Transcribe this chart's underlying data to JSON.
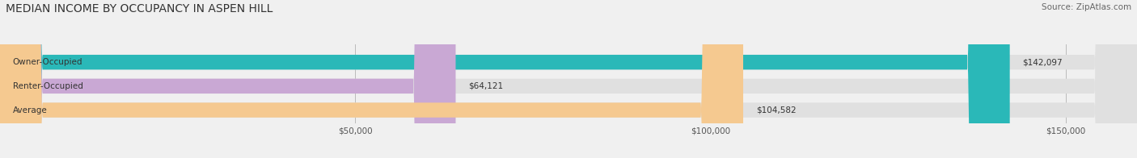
{
  "title": "MEDIAN INCOME BY OCCUPANCY IN ASPEN HILL",
  "source": "Source: ZipAtlas.com",
  "categories": [
    "Owner-Occupied",
    "Renter-Occupied",
    "Average"
  ],
  "values": [
    142097,
    64121,
    104582
  ],
  "labels": [
    "$142,097",
    "$64,121",
    "$104,582"
  ],
  "bar_colors": [
    "#2ab8b8",
    "#c9a8d4",
    "#f5c990"
  ],
  "background_color": "#f0f0f0",
  "bar_bg_color": "#e0e0e0",
  "xlim": [
    0,
    160000
  ],
  "xticks": [
    0,
    50000,
    100000,
    150000
  ],
  "xtick_labels": [
    "",
    "$50,000",
    "$100,000",
    "$150,000"
  ],
  "title_fontsize": 10,
  "label_fontsize": 7.5,
  "tick_fontsize": 7.5,
  "source_fontsize": 7.5,
  "figsize": [
    14.06,
    1.96
  ],
  "dpi": 100
}
